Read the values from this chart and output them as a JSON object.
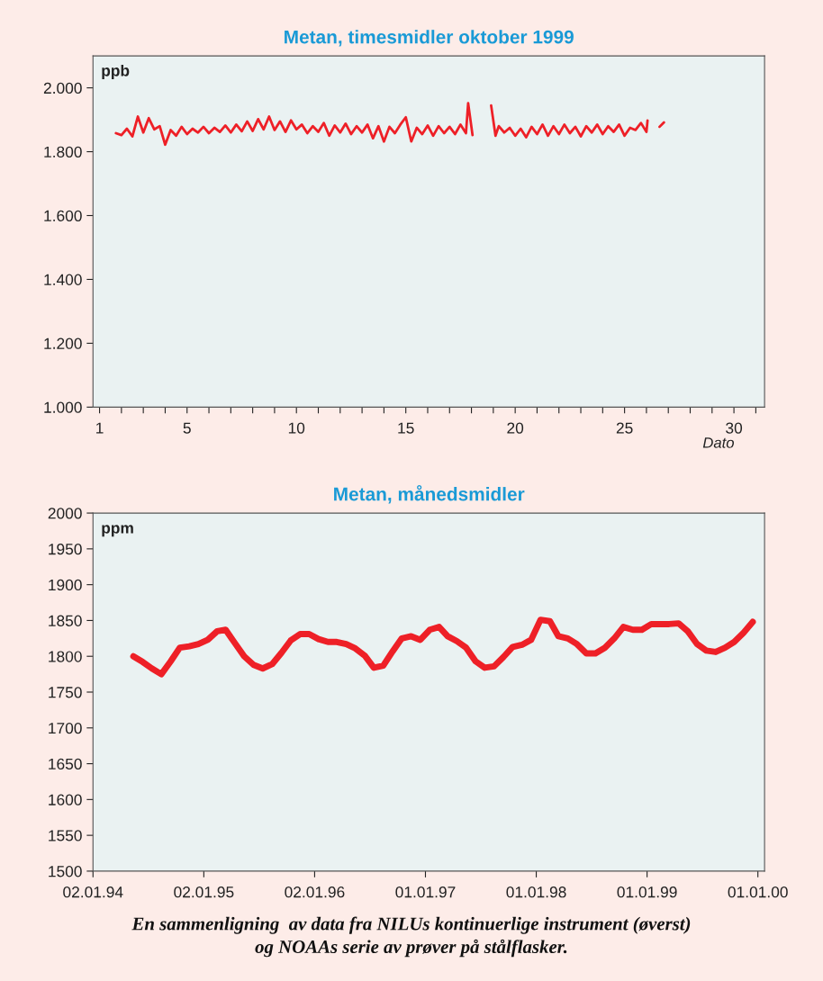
{
  "chart_data": [
    {
      "type": "line",
      "title": "Metan, timesmidler oktober 1999",
      "xlabel": "Dato",
      "ylabel": "ppb",
      "xlim": [
        0.7,
        31.4
      ],
      "ylim": [
        1000,
        2100
      ],
      "xticks": [
        1,
        {
          "value": 2,
          "label": null
        },
        {
          "value": 3,
          "label": null
        },
        {
          "value": 4,
          "label": null
        },
        5,
        {
          "value": 6,
          "label": null
        },
        {
          "value": 7,
          "label": null
        },
        {
          "value": 8,
          "label": null
        },
        {
          "value": 9,
          "label": null
        },
        10,
        {
          "value": 11,
          "label": null
        },
        {
          "value": 12,
          "label": null
        },
        {
          "value": 13,
          "label": null
        },
        {
          "value": 14,
          "label": null
        },
        15,
        {
          "value": 16,
          "label": null
        },
        {
          "value": 17,
          "label": null
        },
        {
          "value": 18,
          "label": null
        },
        {
          "value": 19,
          "label": null
        },
        20,
        {
          "value": 21,
          "label": null
        },
        {
          "value": 22,
          "label": null
        },
        {
          "value": 23,
          "label": null
        },
        {
          "value": 24,
          "label": null
        },
        25,
        {
          "value": 26,
          "label": null
        },
        {
          "value": 27,
          "label": null
        },
        {
          "value": 28,
          "label": null
        },
        {
          "value": 29,
          "label": null
        },
        30,
        {
          "value": 31,
          "label": null
        }
      ],
      "yticks": [
        {
          "value": 1000,
          "label": "1.000"
        },
        {
          "value": 1200,
          "label": "1.200"
        },
        {
          "value": 1400,
          "label": "1.400"
        },
        {
          "value": 1600,
          "label": "1.600"
        },
        {
          "value": 1800,
          "label": "1.800"
        },
        {
          "value": 2000,
          "label": "2.000"
        }
      ],
      "series": [
        {
          "color": "#ee2027",
          "x": [
            1.75,
            2.0,
            2.25,
            2.5,
            2.75,
            3.0,
            3.25,
            3.5,
            3.75,
            4.0,
            4.25,
            4.5,
            4.75,
            5.0,
            5.25,
            5.5,
            5.75,
            6.0,
            6.25,
            6.5,
            6.75,
            7.0,
            7.25,
            7.5,
            7.75,
            8.0,
            8.25,
            8.5,
            8.75,
            9.0,
            9.25,
            9.5,
            9.75,
            10.0,
            10.25,
            10.5,
            10.75,
            11.0,
            11.25,
            11.5,
            11.75,
            12.0,
            12.25,
            12.5,
            12.75,
            13.0,
            13.25,
            13.5,
            13.75,
            14.0,
            14.25,
            14.5,
            14.75,
            15.0,
            15.25,
            15.5,
            15.75,
            16.0,
            16.25,
            16.5,
            16.75,
            17.0,
            17.25,
            17.5,
            17.75,
            17.85,
            18.05,
            18.3,
            18.9,
            19.1,
            19.25,
            19.5,
            19.75,
            20.0,
            20.25,
            20.5,
            20.75,
            21.0,
            21.25,
            21.5,
            21.75,
            22.0,
            22.25,
            22.5,
            22.75,
            23.0,
            23.25,
            23.5,
            23.75,
            24.0,
            24.25,
            24.5,
            24.75,
            25.0,
            25.25,
            25.5,
            25.75,
            26.0,
            26.05,
            26.3,
            26.6,
            26.8
          ],
          "values": [
            1858,
            1852,
            1872,
            1848,
            1910,
            1860,
            1905,
            1870,
            1880,
            1822,
            1868,
            1850,
            1878,
            1855,
            1872,
            1860,
            1878,
            1858,
            1875,
            1862,
            1882,
            1860,
            1885,
            1864,
            1895,
            1865,
            1902,
            1870,
            1910,
            1868,
            1895,
            1862,
            1898,
            1870,
            1885,
            1858,
            1880,
            1862,
            1890,
            1850,
            1882,
            1860,
            1888,
            1855,
            1880,
            1860,
            1885,
            1842,
            1880,
            1832,
            1878,
            1858,
            1885,
            1908,
            1832,
            1875,
            1855,
            1882,
            1850,
            1880,
            1858,
            1878,
            1855,
            1885,
            1858,
            1952,
            1852,
            null,
            1945,
            1850,
            1880,
            1860,
            1875,
            1850,
            1872,
            1845,
            1878,
            1855,
            1885,
            1850,
            1880,
            1855,
            1885,
            1858,
            1878,
            1848,
            1880,
            1860,
            1885,
            1855,
            1880,
            1862,
            1885,
            1850,
            1875,
            1868,
            1890,
            1862,
            1898,
            null,
            1878,
            1892
          ]
        }
      ]
    },
    {
      "type": "line",
      "title": "Metan, månedsmidler",
      "ylabel": "ppm",
      "xlim": [
        "1994-01-02",
        "2000-01-23"
      ],
      "ylim": [
        1500,
        2000
      ],
      "xticks": [
        {
          "value": "1994-01-02",
          "label": "02.01.94"
        },
        {
          "value": "1995-01-02",
          "label": "02.01.95"
        },
        {
          "value": "1996-01-02",
          "label": "02.01.96"
        },
        {
          "value": "1997-01-01",
          "label": "01.01.97"
        },
        {
          "value": "1998-01-01",
          "label": "01.01.98"
        },
        {
          "value": "1999-01-01",
          "label": "01.01.99"
        },
        {
          "value": "2000-01-01",
          "label": "01.01.00"
        }
      ],
      "yticks": [
        1500,
        1550,
        1600,
        1650,
        1700,
        1750,
        1800,
        1850,
        1900,
        1950,
        2000
      ],
      "x": [
        "1994-05-15",
        "1994-06-15",
        "1994-07-15",
        "1994-08-15",
        "1994-09-15",
        "1994-10-15",
        "1994-11-15",
        "1994-12-15",
        "1995-01-15",
        "1995-02-15",
        "1995-03-15",
        "1995-04-15",
        "1995-05-15",
        "1995-06-15",
        "1995-07-15",
        "1995-08-15",
        "1995-09-15",
        "1995-10-15",
        "1995-11-15",
        "1995-12-15",
        "1996-01-15",
        "1996-02-15",
        "1996-03-15",
        "1996-04-15",
        "1996-05-15",
        "1996-06-15",
        "1996-07-15",
        "1996-08-15",
        "1996-09-15",
        "1996-10-15",
        "1996-11-15",
        "1996-12-15",
        "1997-01-15",
        "1997-02-15",
        "1997-03-15",
        "1997-04-15",
        "1997-05-15",
        "1997-06-15",
        "1997-07-15",
        "1997-08-15",
        "1997-09-15",
        "1997-10-15",
        "1997-11-15",
        "1997-12-15",
        "1998-01-15",
        "1998-02-15",
        "1998-03-15",
        "1998-04-15",
        "1998-05-15",
        "1998-06-15",
        "1998-07-15",
        "1998-08-15",
        "1998-09-15",
        "1998-10-15",
        "1998-11-15",
        "1998-12-15",
        "1999-01-15",
        "1999-02-15",
        "1999-03-15",
        "1999-04-15",
        "1999-05-15",
        "1999-06-15",
        "1999-07-15",
        "1999-08-15",
        "1999-09-15",
        "1999-10-15",
        "1999-11-15",
        "1999-12-15"
      ],
      "series": [
        {
          "color": "#ee2027",
          "values": [
            1800,
            1792,
            1783,
            1775,
            1793,
            1812,
            1814,
            1817,
            1823,
            1835,
            1837,
            1818,
            1800,
            1788,
            1783,
            1789,
            1805,
            1822,
            1831,
            1831,
            1824,
            1820,
            1820,
            1817,
            1811,
            1801,
            1784,
            1787,
            1807,
            1825,
            1828,
            1823,
            1837,
            1841,
            1828,
            1821,
            1812,
            1793,
            1784,
            1786,
            1799,
            1813,
            1816,
            1823,
            1851,
            1849,
            1828,
            1825,
            1817,
            1804,
            1804,
            1812,
            1825,
            1841,
            1837,
            1837,
            1845,
            1845,
            1845,
            1846,
            1835,
            1817,
            1808,
            1806,
            1812,
            1820,
            1833,
            1848
          ]
        }
      ],
      "annotations": [
        "En sammenligning  av data fra NILUs kontinuerlige instrument (øverst)\nog NOAAs serie av prøver på stålflasker."
      ]
    }
  ]
}
